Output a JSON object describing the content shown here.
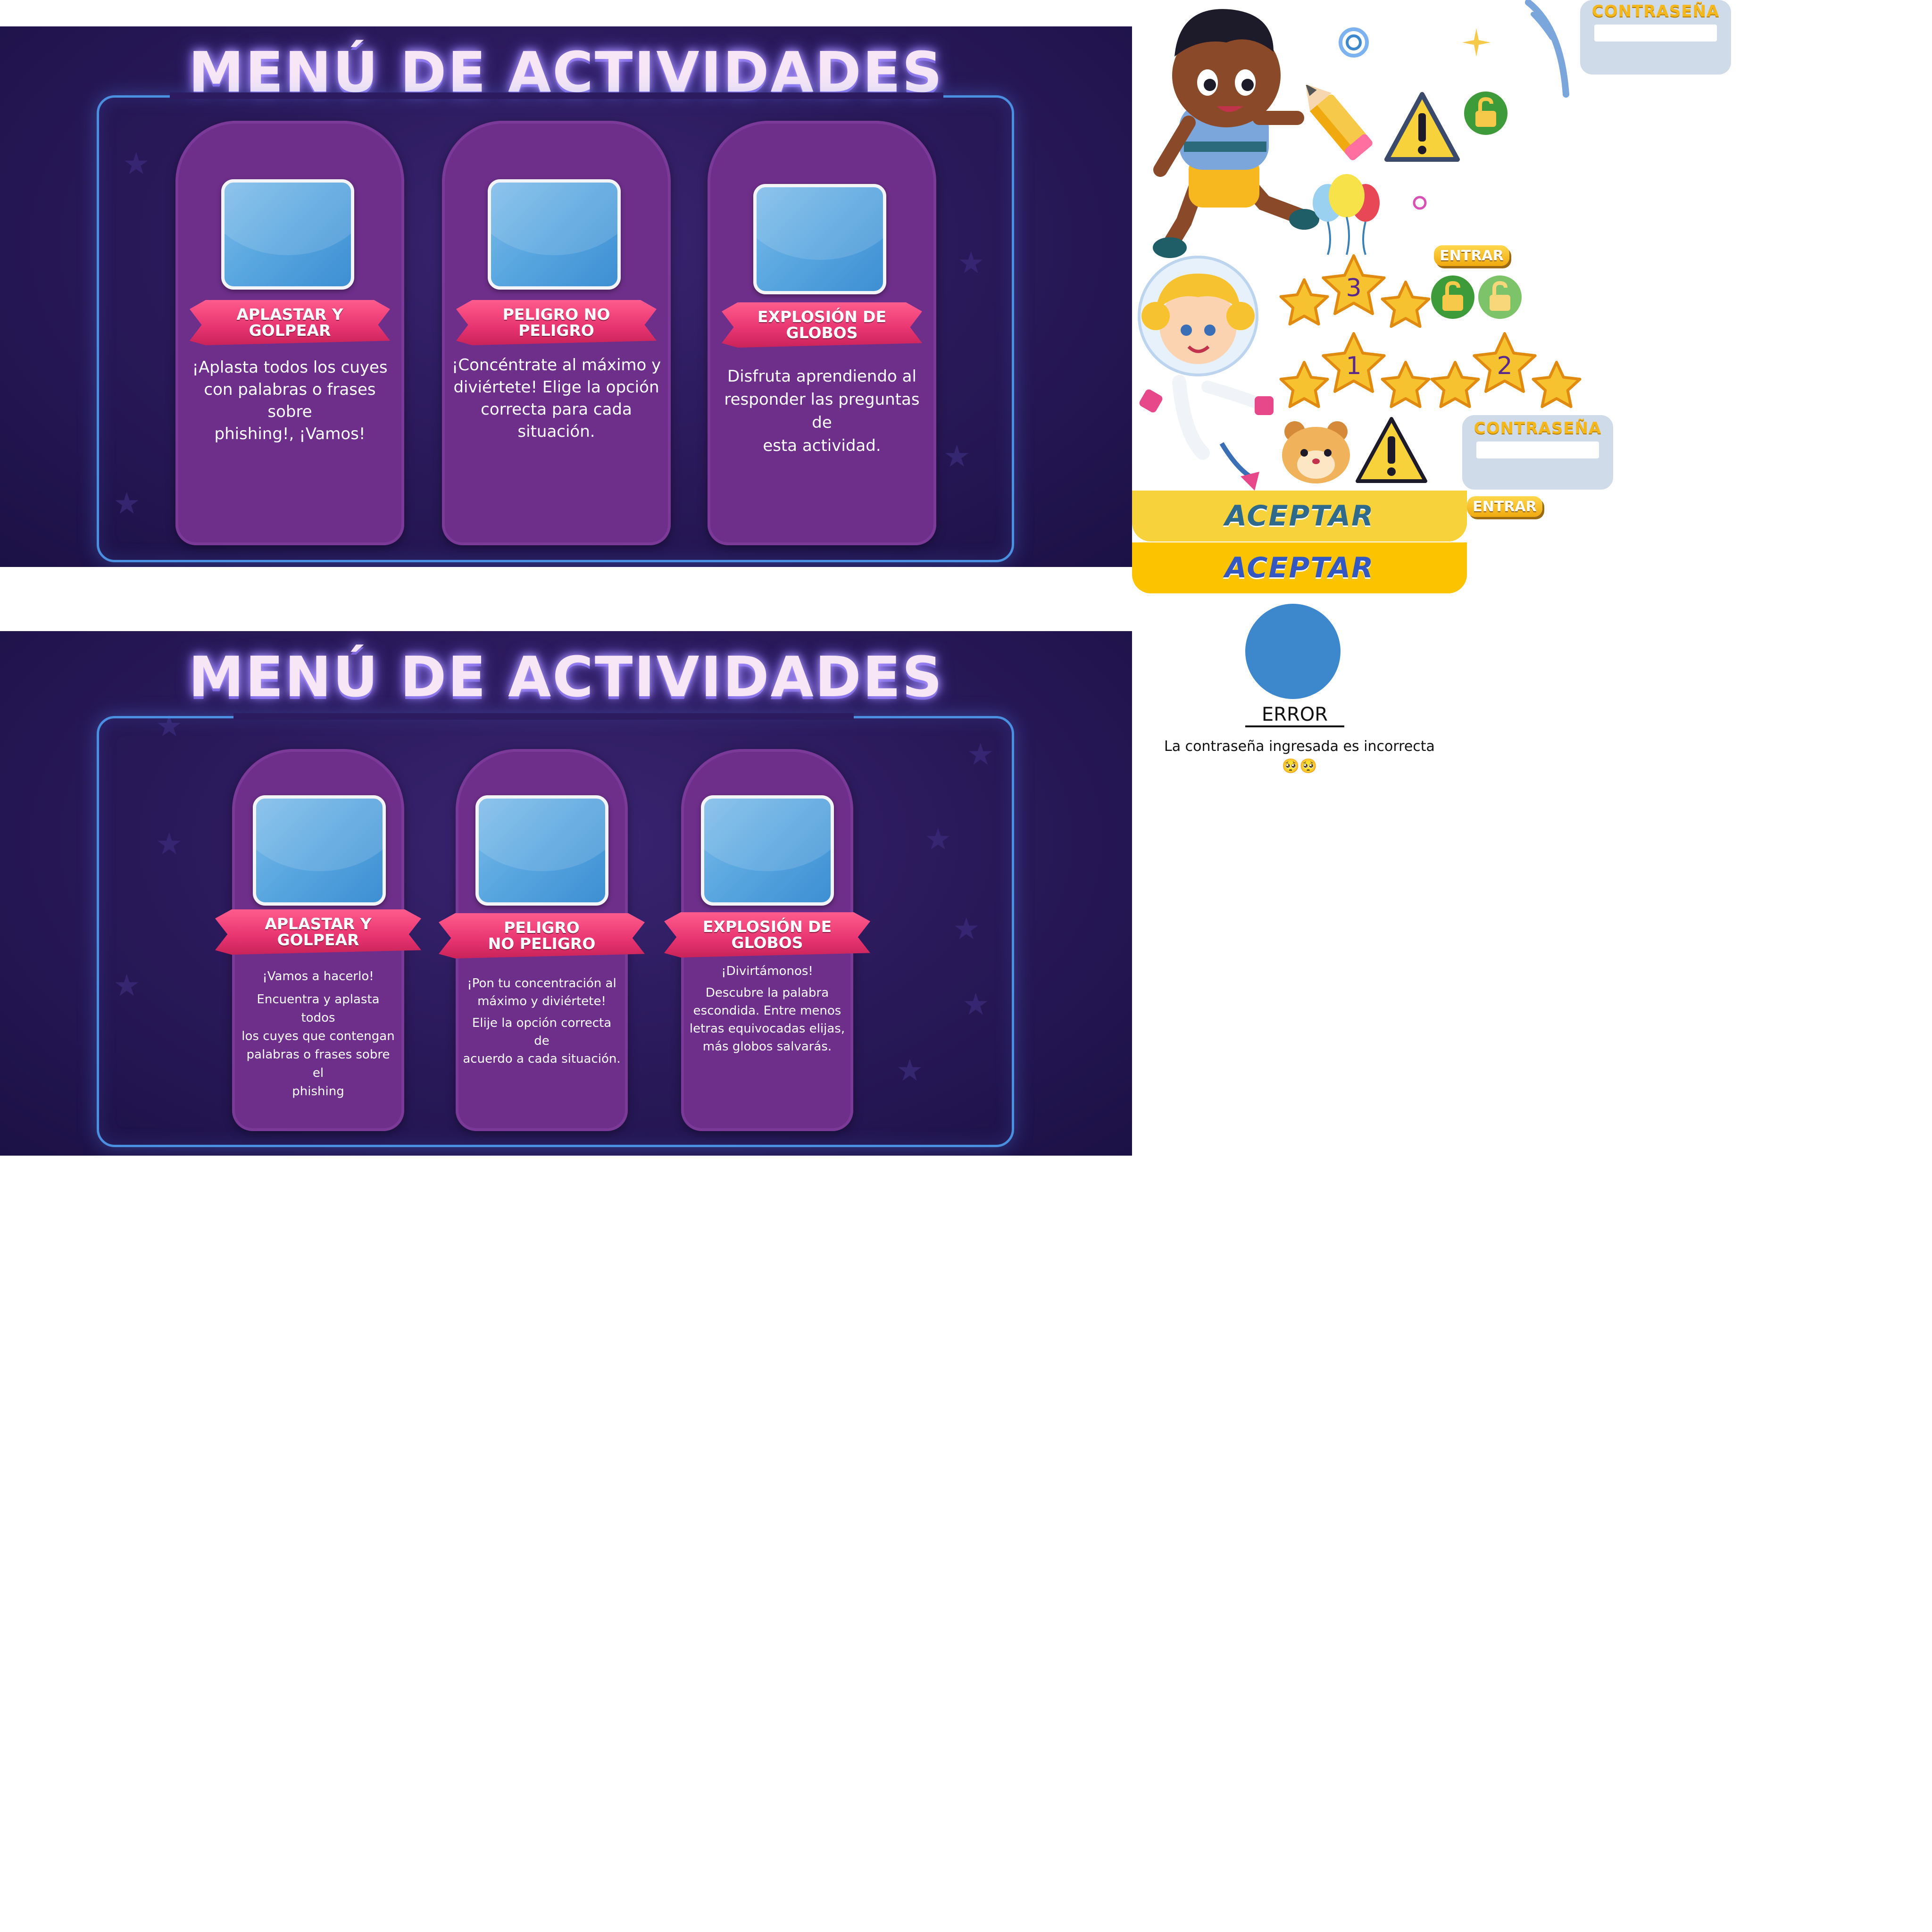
{
  "menu_v1": {
    "title": "MENÚ DE ACTIVIDADES",
    "cards": [
      {
        "ribbon": "APLASTAR Y\nGOLPEAR",
        "lines": [
          "¡Aplasta todos los cuyes",
          "con palabras o frases sobre",
          "phishing!, ¡Vamos!"
        ]
      },
      {
        "ribbon": "PELIGRO NO\nPELIGRO",
        "lines": [
          "¡Concéntrate al máximo y",
          "diviértete! Elige la opción",
          "correcta para cada",
          "situación."
        ]
      },
      {
        "ribbon": "EXPLOSIÓN DE\nGLOBOS",
        "lines": [
          "Disfruta aprendiendo al",
          "responder las preguntas de",
          "esta actividad."
        ]
      }
    ]
  },
  "menu_v2": {
    "title": "MENÚ DE ACTIVIDADES",
    "cards": [
      {
        "ribbon": "APLASTAR Y\nGOLPEAR",
        "lines": [
          "¡Vamos a hacerlo!",
          "Encuentra y aplasta todos",
          "los cuyes que contengan",
          "palabras o frases sobre el",
          "phishing"
        ]
      },
      {
        "ribbon": "PELIGRO\nNO PELIGRO",
        "lines": [
          "¡Pon tu concentración al",
          "máximo y diviértete!",
          "Elije la opción correcta de",
          "acuerdo a cada situación."
        ]
      },
      {
        "ribbon": "EXPLOSIÓN DE\nGLOBOS",
        "lines": [
          "¡Divirtámonos!",
          "Descubre la palabra",
          "escondida. Entre menos",
          "letras equivocadas elijas,",
          "más globos salvarás."
        ]
      }
    ]
  },
  "assets": {
    "password_label_1": "CONTRASEÑA",
    "password_label_2": "CONTRASEÑA",
    "entrar_1": "ENTRAR",
    "entrar_2": "ENTRAR",
    "aceptar_1": "ACEPTAR",
    "aceptar_2": "ACEPTAR",
    "star_numbers": [
      "3",
      "1",
      "2"
    ],
    "error_title": "ERROR",
    "error_message": "La contraseña ingresada es incorrecta",
    "error_emoji": "🥺🥺",
    "icons": [
      "boy-character-icon",
      "girl-astronaut-icon",
      "pencil-icon",
      "warning-icon",
      "lock-open-icon",
      "balloons-icon",
      "star-icon",
      "hamster-icon",
      "ring-icon",
      "sparkle-icon"
    ]
  },
  "colors": {
    "panel_bg": "#2b1a5c",
    "card_bg": "#6d2f8a",
    "ribbon": "#e73470",
    "screen_blue": "#5aa7e0",
    "frame_blue": "#4b8fe0",
    "aceptar_1": "#f7d23a",
    "aceptar_2": "#fcc400",
    "error_circle": "#3d88cc"
  }
}
